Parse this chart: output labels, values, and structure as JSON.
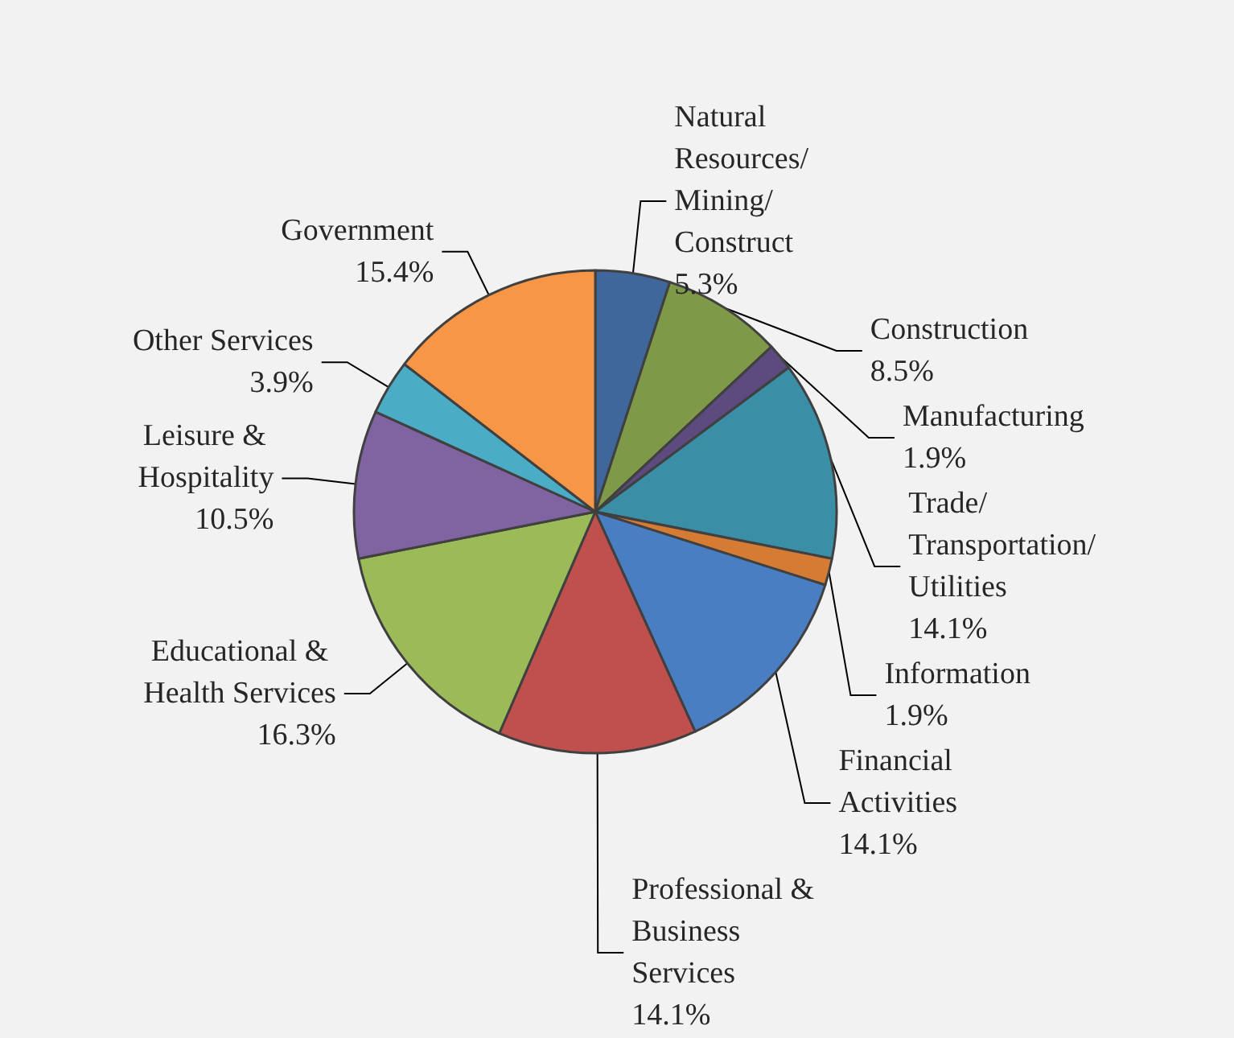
{
  "chart_data": {
    "type": "pie",
    "categories": [
      "Natural Resources/Mining/Construct",
      "Construction",
      "Manufacturing",
      "Trade/Transportation/Utilities",
      "Information",
      "Financial Activities",
      "Professional & Business Services",
      "Educational & Health Services",
      "Leisure & Hospitality",
      "Other Services",
      "Government"
    ],
    "values": [
      5.3,
      8.5,
      1.9,
      14.1,
      1.9,
      14.1,
      14.1,
      16.3,
      10.5,
      3.9,
      15.4
    ],
    "value_labels": [
      "5.3%",
      "8.5%",
      "1.9%",
      "14.1%",
      "1.9%",
      "14.1%",
      "14.1%",
      "16.3%",
      "10.5%",
      "3.9%",
      "15.4%"
    ],
    "colors": [
      "#3f679c",
      "#7e9a48",
      "#5d4a7e",
      "#3a8fa6",
      "#d67b33",
      "#4a7ec2",
      "#c0504d",
      "#9bbb59",
      "#8064a2",
      "#4bacc6",
      "#f79646"
    ],
    "legend": false
  }
}
